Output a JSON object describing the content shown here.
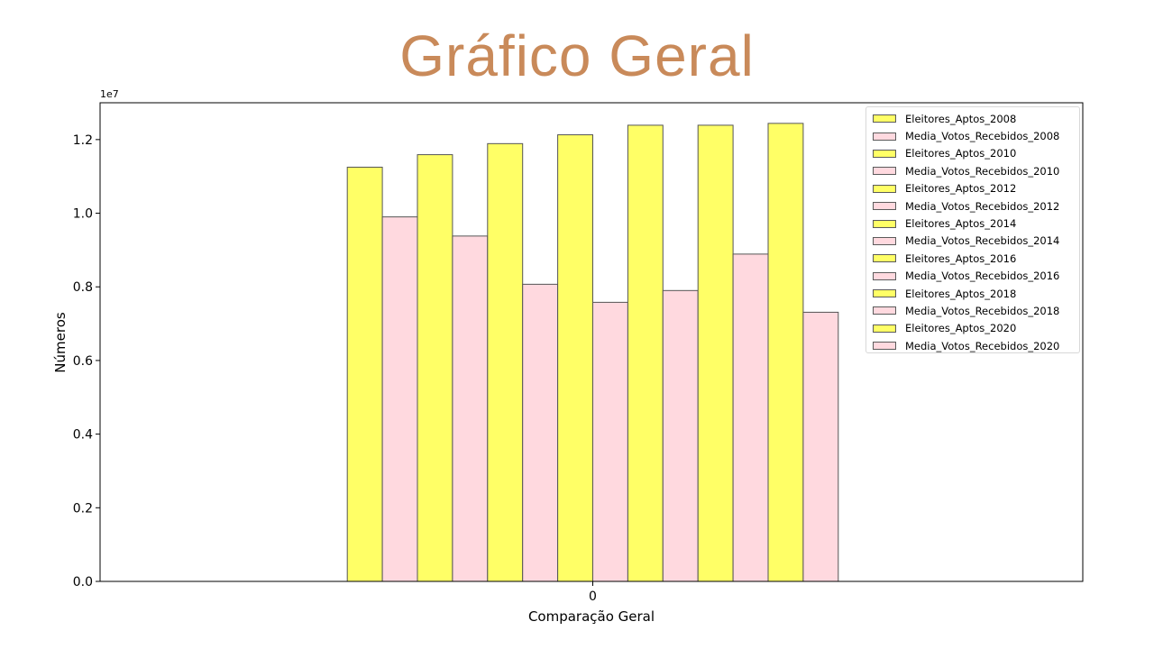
{
  "page": {
    "title": "Gráfico Geral",
    "title_color": "#c98a5a"
  },
  "chart_data": {
    "type": "bar",
    "title": "",
    "xlabel": "Comparação Geral",
    "ylabel": "Números",
    "y_offset_label": "1e7",
    "y_scale": 10000000,
    "categories": [
      "0"
    ],
    "ylim": [
      0,
      13000000
    ],
    "yticks": [
      0,
      2000000,
      4000000,
      6000000,
      8000000,
      10000000,
      12000000
    ],
    "ytick_labels": [
      "0.0",
      "0.2",
      "0.4",
      "0.6",
      "0.8",
      "1.0",
      "1.2"
    ],
    "grid": false,
    "legend_position": "top-right",
    "colors": {
      "eleitores": "#ffff66",
      "media": "#ffd9df",
      "edge": "#555555"
    },
    "series": [
      {
        "name": "Eleitores_Aptos_2008",
        "color": "#ffff66",
        "values": [
          11250000
        ]
      },
      {
        "name": "Media_Votos_Recebidos_2008",
        "color": "#ffd9df",
        "values": [
          9900000
        ]
      },
      {
        "name": "Eleitores_Aptos_2010",
        "color": "#ffff66",
        "values": [
          11590000
        ]
      },
      {
        "name": "Media_Votos_Recebidos_2010",
        "color": "#ffd9df",
        "values": [
          9380000
        ]
      },
      {
        "name": "Eleitores_Aptos_2012",
        "color": "#ffff66",
        "values": [
          11890000
        ]
      },
      {
        "name": "Media_Votos_Recebidos_2012",
        "color": "#ffd9df",
        "values": [
          8070000
        ]
      },
      {
        "name": "Eleitores_Aptos_2014",
        "color": "#ffff66",
        "values": [
          12130000
        ]
      },
      {
        "name": "Media_Votos_Recebidos_2014",
        "color": "#ffd9df",
        "values": [
          7580000
        ]
      },
      {
        "name": "Eleitores_Aptos_2016",
        "color": "#ffff66",
        "values": [
          12390000
        ]
      },
      {
        "name": "Media_Votos_Recebidos_2016",
        "color": "#ffd9df",
        "values": [
          7900000
        ]
      },
      {
        "name": "Eleitores_Aptos_2018",
        "color": "#ffff66",
        "values": [
          12390000
        ]
      },
      {
        "name": "Media_Votos_Recebidos_2018",
        "color": "#ffd9df",
        "values": [
          8890000
        ]
      },
      {
        "name": "Eleitores_Aptos_2020",
        "color": "#ffff66",
        "values": [
          12440000
        ]
      },
      {
        "name": "Media_Votos_Recebidos_2020",
        "color": "#ffd9df",
        "values": [
          7310000
        ]
      }
    ]
  }
}
